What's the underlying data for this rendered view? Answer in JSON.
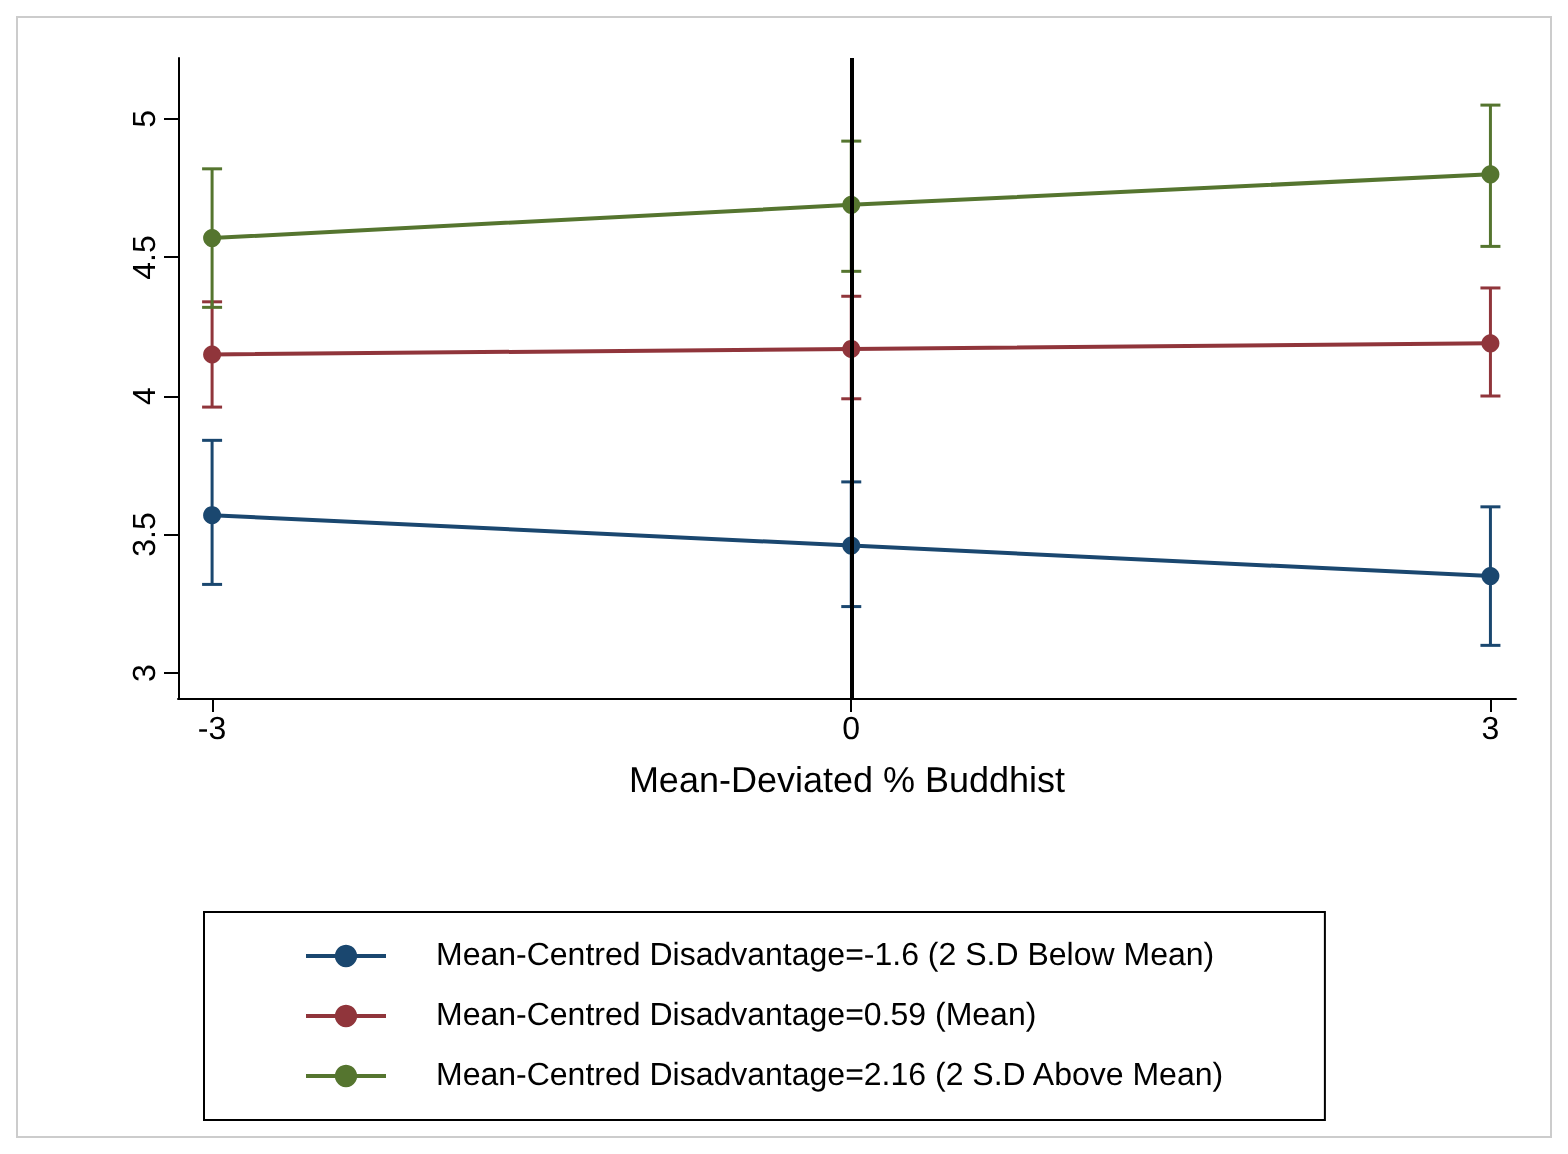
{
  "chart_data": {
    "type": "line",
    "xlabel": "Mean-Deviated % Buddhist",
    "x": [
      -3,
      0,
      3
    ],
    "series": [
      {
        "name": "Mean-Centred Disadvantage=-1.6 (2 S.D Below Mean)",
        "color": "#1a476f",
        "values": [
          3.57,
          3.46,
          3.35
        ],
        "errors": [
          [
            3.32,
            3.84
          ],
          [
            3.24,
            3.69
          ],
          [
            3.1,
            3.6
          ]
        ]
      },
      {
        "name": "Mean-Centred Disadvantage=0.59 (Mean)",
        "color": "#90353b",
        "values": [
          4.15,
          4.17,
          4.19
        ],
        "errors": [
          [
            3.96,
            4.34
          ],
          [
            3.99,
            4.36
          ],
          [
            4.0,
            4.39
          ]
        ]
      },
      {
        "name": "Mean-Centred Disadvantage=2.16 (2 S.D Above Mean)",
        "color": "#55752f",
        "values": [
          4.57,
          4.69,
          4.8
        ],
        "errors": [
          [
            4.32,
            4.82
          ],
          [
            4.45,
            4.92
          ],
          [
            4.54,
            5.05
          ]
        ]
      }
    ],
    "xlim": [
      -3.16,
      3.12
    ],
    "xticks": [
      -3,
      0,
      3
    ],
    "ylim": [
      2.91,
      5.22
    ],
    "yticks": [
      3,
      3.5,
      4,
      4.5,
      5
    ],
    "ref_lines": [
      {
        "axis": "x",
        "value": 0,
        "color": "#000000"
      }
    ],
    "grid": false,
    "legend": "bottom",
    "marker": "circle",
    "line_style": "solid"
  }
}
